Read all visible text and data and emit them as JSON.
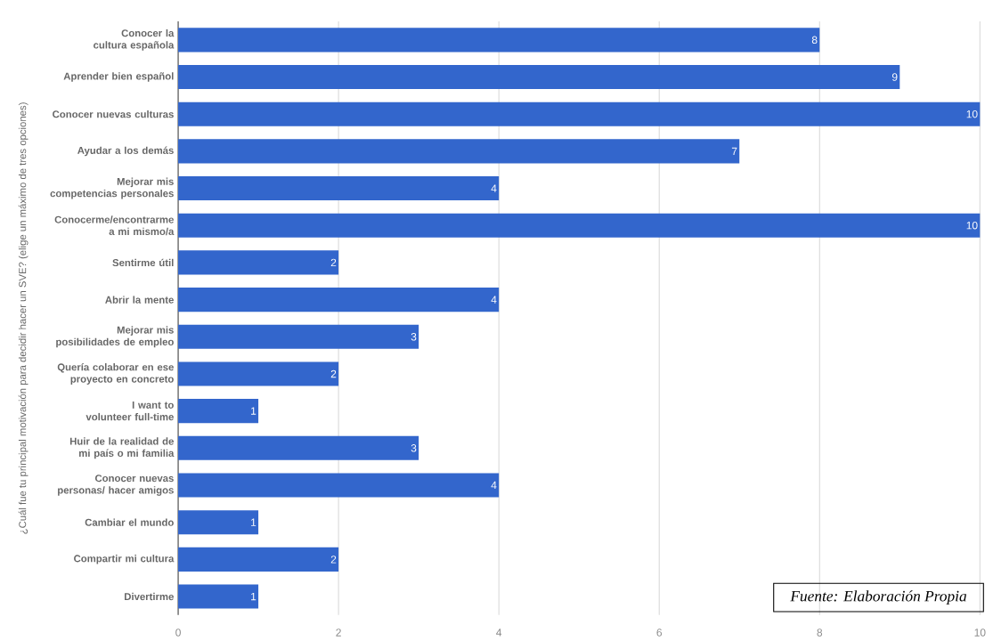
{
  "chart_data": {
    "type": "bar",
    "orientation": "horizontal",
    "ylabel": "¿Cuál fue tu principal motivación para decidir hacer un SVE? (elige un máximo de tres opciones)",
    "categories": [
      "Conocer la cultura española",
      "Aprender bien español",
      "Conocer nuevas culturas",
      "Ayudar a los demás",
      "Mejorar mis competencias personales",
      "Conocerme/encontrarme a mi mismo/a",
      "Sentirme útil",
      "Abrir la mente",
      "Mejorar mis posibilidades de empleo",
      "Quería colaborar en ese proyecto en concreto",
      "I want to volunteer full-time",
      "Huir de la realidad de mi país o mi familia",
      "Conocer nuevas personas/ hacer amigos",
      "Cambiar el mundo",
      "Compartir mi cultura",
      "Divertirme"
    ],
    "values": [
      8,
      9,
      10,
      7,
      4,
      10,
      2,
      4,
      3,
      2,
      1,
      3,
      4,
      1,
      2,
      1
    ],
    "color": "#3366cc",
    "data_labels": true,
    "xlim": [
      0,
      10
    ],
    "xticks": [
      0,
      2,
      4,
      6,
      8,
      10
    ],
    "grid": "x",
    "annotations": [
      "Fuente: Elaboración Propia"
    ]
  }
}
